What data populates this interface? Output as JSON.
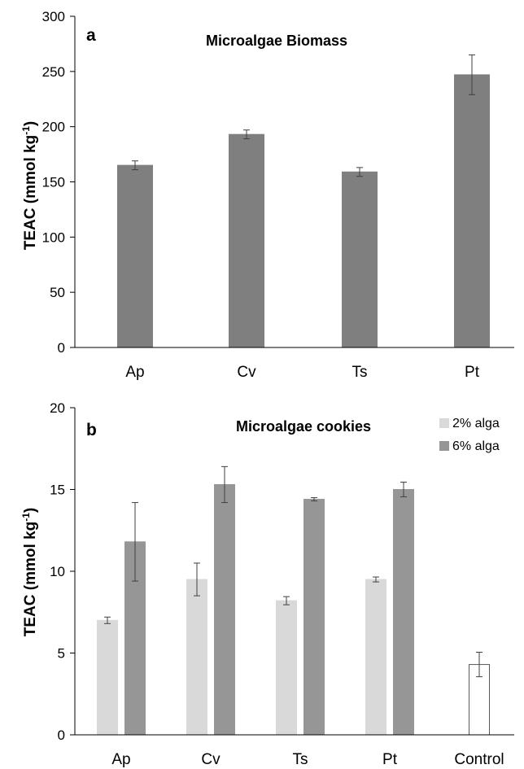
{
  "chart_data": [
    {
      "type": "bar",
      "panel": "a",
      "title": "Microalgae Biomass",
      "ylabel": "TEAC (mmol kg-1)",
      "ylabel_main": "TEAC (mmol kg",
      "ylabel_sup": "-1",
      "ylabel_end": ")",
      "ylim": [
        0,
        300
      ],
      "yticks": [
        0,
        50,
        100,
        150,
        200,
        250,
        300
      ],
      "categories": [
        "Ap",
        "Cv",
        "Ts",
        "Pt"
      ],
      "series": [
        {
          "color": "#7f7f7f",
          "values": [
            165,
            193,
            159,
            247
          ],
          "errors": [
            4,
            4,
            4,
            18
          ]
        }
      ],
      "grid": false
    },
    {
      "type": "bar",
      "panel": "b",
      "title": "Microalgae cookies",
      "ylabel": "TEAC (mmol kg-1)",
      "ylabel_main": "TEAC (mmol kg",
      "ylabel_sup": "-1",
      "ylabel_end": ")",
      "ylim": [
        0,
        20
      ],
      "yticks": [
        0,
        5,
        10,
        15,
        20
      ],
      "categories": [
        "Ap",
        "Cv",
        "Ts",
        "Pt",
        "Control"
      ],
      "series": [
        {
          "name": "2% alga",
          "color": "#d9d9d9",
          "values": [
            7.0,
            9.5,
            8.2,
            9.5,
            null
          ],
          "errors": [
            0.2,
            1.0,
            0.25,
            0.15,
            null
          ]
        },
        {
          "name": "6% alga",
          "color": "#969696",
          "values": [
            11.8,
            15.3,
            14.4,
            15.0,
            null
          ],
          "errors": [
            2.4,
            1.1,
            0.1,
            0.45,
            null
          ]
        },
        {
          "name": "",
          "color": "#ffffff",
          "values": [
            null,
            null,
            null,
            null,
            4.3
          ],
          "errors": [
            null,
            null,
            null,
            null,
            0.75
          ]
        }
      ],
      "legend_position": "top-right",
      "grid": false
    }
  ]
}
